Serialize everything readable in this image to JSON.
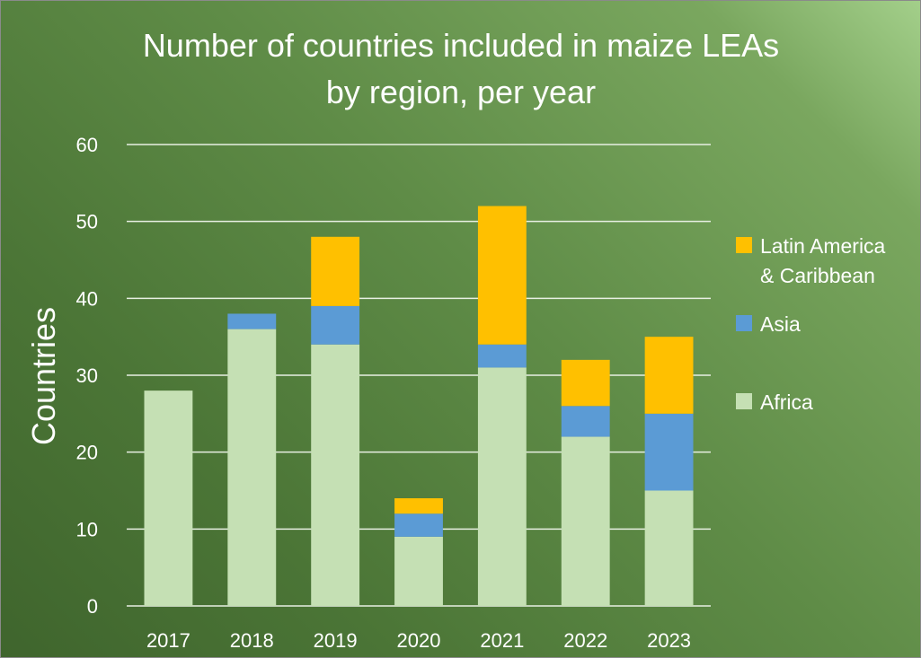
{
  "chart_data": {
    "type": "bar",
    "stacked": true,
    "title": "Number of countries included in maize LEAs by region, per year",
    "title_lines": [
      "Number of countries included in maize LEAs",
      "by region, per year"
    ],
    "xlabel": "",
    "ylabel": "Countries",
    "categories": [
      "2017",
      "2018",
      "2019",
      "2020",
      "2021",
      "2022",
      "2023"
    ],
    "series": [
      {
        "name": "Africa",
        "color": "#c5e0b4",
        "values": [
          28,
          36,
          34,
          9,
          31,
          22,
          15
        ]
      },
      {
        "name": "Asia",
        "color": "#5b9bd5",
        "values": [
          0,
          2,
          5,
          3,
          3,
          4,
          10
        ]
      },
      {
        "name": "Latin America & Caribbean",
        "color": "#ffc000",
        "values": [
          0,
          0,
          9,
          2,
          18,
          6,
          10
        ]
      }
    ],
    "legend": [
      {
        "lines": [
          "Latin America",
          "& Caribbean"
        ],
        "color": "#ffc000"
      },
      {
        "lines": [
          "Asia"
        ],
        "color": "#5b9bd5"
      },
      {
        "lines": [
          "Africa"
        ],
        "color": "#c5e0b4"
      }
    ],
    "legend_position": "right",
    "ylim": [
      0,
      60
    ],
    "yticks": [
      "0",
      "10",
      "20",
      "30",
      "40",
      "50",
      "60"
    ],
    "grid": true
  }
}
